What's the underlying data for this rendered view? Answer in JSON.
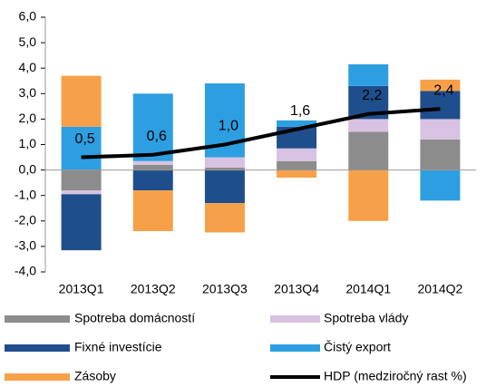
{
  "chart_data": {
    "type": "bar",
    "categories": [
      "2013Q1",
      "2013Q2",
      "2013Q3",
      "2013Q4",
      "2014Q1",
      "2014Q2"
    ],
    "series": [
      {
        "name": "Spotreba domácností",
        "color": "#8c8c8c",
        "values": [
          -0.8,
          0.2,
          0.1,
          0.35,
          1.5,
          1.2
        ]
      },
      {
        "name": "Spotreba vlády",
        "color": "#d8c2e2",
        "values": [
          -0.15,
          0.15,
          0.4,
          0.5,
          0.5,
          0.8
        ]
      },
      {
        "name": "Fixné investície",
        "color": "#1f4e8c",
        "values": [
          -2.2,
          -0.8,
          -1.3,
          0.85,
          1.3,
          1.1
        ]
      },
      {
        "name": "Čistý export",
        "color": "#2d9fe0",
        "values": [
          1.7,
          2.65,
          2.9,
          0.25,
          0.85,
          -1.2
        ]
      },
      {
        "name": "Zásoby",
        "color": "#f7a04a",
        "values": [
          2.0,
          -1.6,
          -1.15,
          -0.3,
          -2.0,
          0.45
        ]
      },
      {
        "name": "HDP (medziročný rast %)",
        "color": "#000000",
        "type": "line",
        "values": [
          0.5,
          0.6,
          1.0,
          1.6,
          2.2,
          2.4
        ],
        "value_labels": [
          "0,5",
          "0,6",
          "1,0",
          "1,6",
          "2,2",
          "2,4"
        ]
      }
    ],
    "ylim": [
      -4,
      6
    ],
    "yticks": [
      {
        "value": -4,
        "label": "-4,0"
      },
      {
        "value": -3,
        "label": "-3,0"
      },
      {
        "value": -2,
        "label": "-2,0"
      },
      {
        "value": -1,
        "label": "-1,0"
      },
      {
        "value": 0,
        "label": "0,0"
      },
      {
        "value": 1,
        "label": "1,0"
      },
      {
        "value": 2,
        "label": "2,0"
      },
      {
        "value": 3,
        "label": "3,0"
      },
      {
        "value": 4,
        "label": "4,0"
      },
      {
        "value": 5,
        "label": "5,0"
      },
      {
        "value": 6,
        "label": "6,0"
      }
    ],
    "grid": false
  }
}
